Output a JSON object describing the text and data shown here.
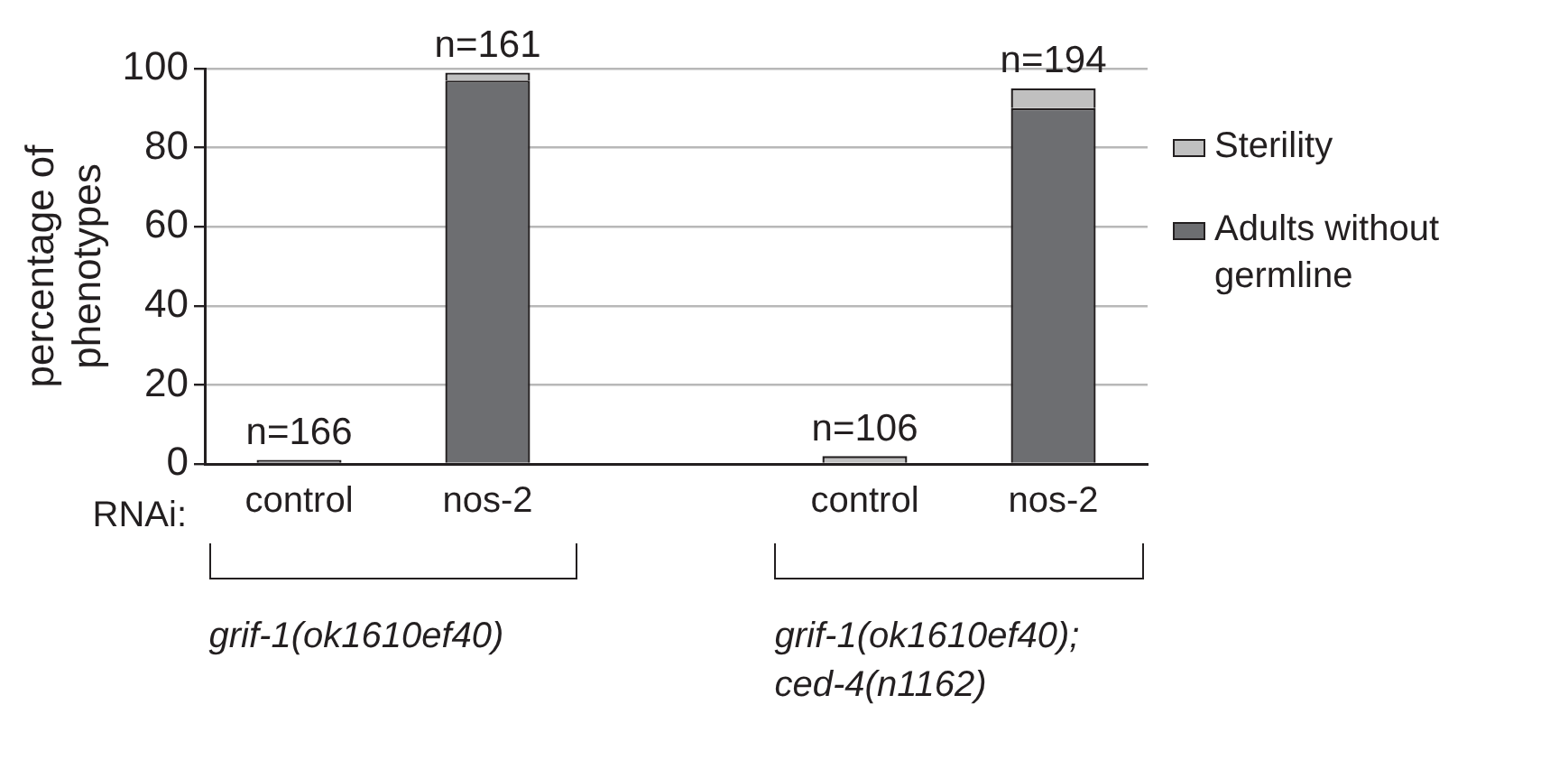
{
  "chart_data": {
    "type": "bar",
    "stacked": true,
    "ylabel": "percentage of phenotypes",
    "categories": [
      "control",
      "nos-2",
      null,
      "control",
      "nos-2"
    ],
    "series": [
      {
        "name": "Adults without germline",
        "color": "#6d6e71",
        "values": [
          1,
          97,
          null,
          0,
          90
        ]
      },
      {
        "name": "Sterility",
        "color": "#c0c0c0",
        "values": [
          0,
          2,
          null,
          2,
          5
        ]
      }
    ],
    "ylim": [
      0,
      100
    ],
    "yticks": [
      0,
      20,
      40,
      60,
      80,
      100
    ],
    "grid": "y",
    "legend": "right",
    "annotations": [
      "RNAi:",
      "grif-1(ok1610ef40)",
      "grif-1(ok1610ef40); ced-4(n1162)",
      "n=166",
      "n=161",
      "n=106",
      "n=194"
    ]
  }
}
